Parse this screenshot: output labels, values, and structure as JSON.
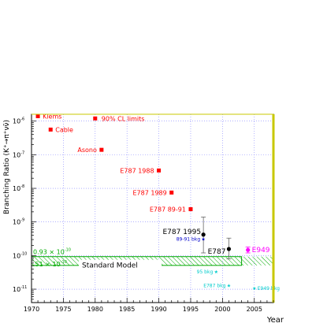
{
  "chart_data": {
    "type": "scatter",
    "x_scale": "linear",
    "y_scale": "log",
    "xlim": [
      1970,
      2008
    ],
    "ylim": [
      4e-12,
      1.6e-06
    ],
    "xlabel": "Year",
    "ylabel": "Branching Ratio (K⁺→π⁺νν̄)",
    "x_ticks": [
      1970,
      1975,
      1980,
      1985,
      1990,
      1995,
      2000,
      2005
    ],
    "x_tick_labels": [
      "1970",
      "1975",
      "1980",
      "1985",
      "1990",
      "1995",
      "2000",
      "2005"
    ],
    "y_ticks": [
      1e-11,
      1e-10,
      1e-09,
      1e-08,
      1e-07,
      1e-06
    ],
    "y_tick_labels": [
      {
        "base": "10",
        "exp": "-11"
      },
      {
        "base": "10",
        "exp": "-10"
      },
      {
        "base": "10",
        "exp": "-9"
      },
      {
        "base": "10",
        "exp": "-8"
      },
      {
        "base": "10",
        "exp": "-7"
      },
      {
        "base": "10",
        "exp": "-6"
      }
    ],
    "grid": true,
    "colors": {
      "limits": "#ff0000",
      "measurement_black": "#000000",
      "e949": "#ff00ff",
      "sm_band": "#00aa00",
      "sm_label": "#00aa00",
      "bkg_blue": "#0000cc",
      "bkg_cyan": "#00cccc",
      "grid": "#8080ff",
      "frame_right_top": "#c8c800"
    },
    "series": [
      {
        "name": "90% CL limits",
        "marker": "square",
        "points": [
          {
            "x": 1971,
            "y": 1.4e-06,
            "label": "Klems"
          },
          {
            "x": 1973,
            "y": 5.6e-07,
            "label": "Cable"
          },
          {
            "x": 1981,
            "y": 1.4e-07,
            "label": "Asono"
          },
          {
            "x": 1990,
            "y": 3.4e-08,
            "label": "E787 1988"
          },
          {
            "x": 1992,
            "y": 7.5e-09,
            "label": "E787 1989"
          },
          {
            "x": 1995,
            "y": 2.4e-09,
            "label": "E787 89-91"
          }
        ]
      },
      {
        "name": "E787",
        "marker": "circle",
        "points": [
          {
            "x": 1997,
            "y": 4.2e-10,
            "y_low": 1.2e-10,
            "y_high": 1.4e-09,
            "label": "E787 1995"
          },
          {
            "x": 2001,
            "y": 1.57e-10,
            "y_low": 8e-11,
            "y_high": 3.3e-10,
            "label": "E787"
          }
        ]
      },
      {
        "name": "E949",
        "marker": "circle",
        "points": [
          {
            "x": 2004,
            "y": 1.47e-10,
            "y_low": 1.2e-10,
            "y_high": 1.8e-10,
            "label": "E949"
          }
        ]
      }
    ],
    "background_markers": [
      {
        "x": 1997,
        "y": 3.2e-10,
        "label": "89-91 bkg",
        "marker": "star",
        "color_key": "bkg_blue"
      },
      {
        "x": 1999,
        "y": 3.4e-11,
        "label": "95 bkg",
        "marker": "star",
        "color_key": "bkg_cyan"
      },
      {
        "x": 2001,
        "y": 1.3e-11,
        "label": "E787 bkg",
        "marker": "star",
        "color_key": "bkg_cyan"
      },
      {
        "x": 2005,
        "y": 1.1e-11,
        "label": "E949 bkg",
        "marker": "star",
        "color_key": "bkg_cyan"
      }
    ],
    "band": {
      "name": "Standard Model",
      "x_range": [
        1970,
        2003
      ],
      "x_range_ext": [
        2003,
        2008
      ],
      "y_low": 5.1e-11,
      "y_high": 9.3e-11,
      "label_top": "0.93 × 10",
      "label_top_exp": "-10",
      "label_bottom": ".51 × 10",
      "label_bottom_exp": "-10",
      "label": "Standard Model"
    },
    "legend_text": "90% CL limits"
  }
}
